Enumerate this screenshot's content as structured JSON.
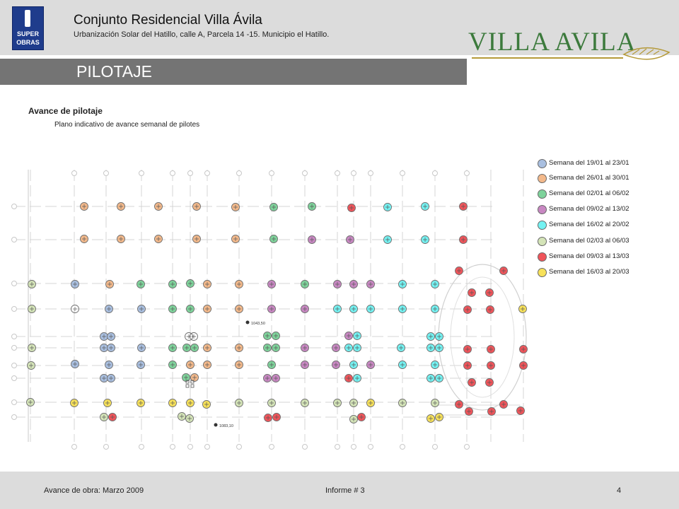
{
  "header": {
    "logo": {
      "line1": "SUPER",
      "line2": "OBRAS"
    },
    "title": "Conjunto Residencial Villa Ávila",
    "subtitle": "Urbanización Solar del Hatillo, calle A, Parcela 14 -15. Municipio el Hatillo.",
    "brand": "VILLA AVILA"
  },
  "banner": {
    "title": "PILOTAJE"
  },
  "section": {
    "title": "Avance  de pilotaje",
    "subtitle": "Plano indicativo de avance semanal de pilotes"
  },
  "plan": {
    "elevation_labels": [
      "1043,50",
      "1083,10"
    ]
  },
  "legend": {
    "items": [
      {
        "label": "Semana del 19/01 al 23/01",
        "color": "#a9bfe0"
      },
      {
        "label": "Semana del 26/01 al 30/01",
        "color": "#f3b98b"
      },
      {
        "label": "Semana del 02/01 al 06/02",
        "color": "#7ed39b"
      },
      {
        "label": "Semana del 09/02 al 13/02",
        "color": "#c887c2"
      },
      {
        "label": "Semana del 16/02 al 20/02",
        "color": "#74f2f2"
      },
      {
        "label": "Semana del 02/03 al 06/03",
        "color": "#d4e4b8"
      },
      {
        "label": "Semana del 09/03 al 13/03",
        "color": "#f0545a"
      },
      {
        "label": "Semana del 16/03 al 20/03",
        "color": "#f7e15a"
      }
    ]
  },
  "footer": {
    "left": "Avance de obra: Marzo 2009",
    "middle": "Informe # 3",
    "page": "4"
  }
}
